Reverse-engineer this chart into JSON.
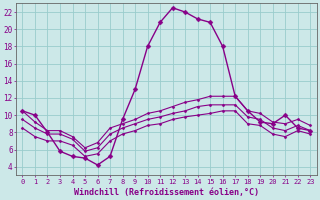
{
  "background_color": "#cce8e8",
  "grid_color": "#99cccc",
  "line_color": "#880088",
  "xlabel": "Windchill (Refroidissement éolien,°C)",
  "xlabel_fontsize": 6.0,
  "xlim": [
    -0.5,
    23.5
  ],
  "ylim": [
    3,
    23
  ],
  "xticks": [
    0,
    1,
    2,
    3,
    4,
    5,
    6,
    7,
    8,
    9,
    10,
    11,
    12,
    13,
    14,
    15,
    16,
    17,
    18,
    19,
    20,
    21,
    22,
    23
  ],
  "yticks": [
    4,
    6,
    8,
    10,
    12,
    14,
    16,
    18,
    20,
    22
  ],
  "series": [
    {
      "x": [
        0,
        1,
        2,
        3,
        4,
        5,
        6,
        7,
        8,
        9,
        10,
        11,
        12,
        13,
        14,
        15,
        16,
        17,
        18,
        19,
        20,
        21,
        22,
        23
      ],
      "y": [
        10.5,
        10.0,
        8.0,
        5.8,
        5.2,
        5.0,
        4.2,
        5.2,
        9.5,
        13.0,
        18.0,
        20.8,
        22.5,
        22.0,
        21.2,
        20.8,
        18.0,
        12.2,
        10.5,
        9.2,
        9.0,
        10.0,
        8.5,
        8.2
      ],
      "marker": "D",
      "markersize": 2.5,
      "linewidth": 1.0
    },
    {
      "x": [
        0,
        1,
        2,
        3,
        4,
        5,
        6,
        7,
        8,
        9,
        10,
        11,
        12,
        13,
        14,
        15,
        16,
        17,
        18,
        19,
        20,
        21,
        22,
        23
      ],
      "y": [
        10.5,
        9.2,
        8.2,
        8.2,
        7.5,
        6.2,
        6.8,
        8.5,
        9.0,
        9.5,
        10.2,
        10.5,
        11.0,
        11.5,
        11.8,
        12.2,
        12.2,
        12.2,
        10.5,
        10.2,
        9.2,
        9.0,
        9.5,
        8.8
      ],
      "marker": "D",
      "markersize": 1.5,
      "linewidth": 0.8
    },
    {
      "x": [
        0,
        1,
        2,
        3,
        4,
        5,
        6,
        7,
        8,
        9,
        10,
        11,
        12,
        13,
        14,
        15,
        16,
        17,
        18,
        19,
        20,
        21,
        22,
        23
      ],
      "y": [
        9.5,
        8.5,
        7.8,
        7.8,
        7.2,
        5.8,
        6.2,
        7.8,
        8.5,
        9.0,
        9.5,
        9.8,
        10.2,
        10.5,
        11.0,
        11.2,
        11.2,
        11.2,
        9.8,
        9.5,
        8.5,
        8.2,
        8.8,
        8.2
      ],
      "marker": "D",
      "markersize": 1.5,
      "linewidth": 0.8
    },
    {
      "x": [
        0,
        1,
        2,
        3,
        4,
        5,
        6,
        7,
        8,
        9,
        10,
        11,
        12,
        13,
        14,
        15,
        16,
        17,
        18,
        19,
        20,
        21,
        22,
        23
      ],
      "y": [
        8.5,
        7.5,
        7.0,
        7.0,
        6.5,
        5.2,
        5.5,
        7.0,
        7.8,
        8.2,
        8.8,
        9.0,
        9.5,
        9.8,
        10.0,
        10.2,
        10.5,
        10.5,
        9.0,
        8.8,
        7.8,
        7.5,
        8.2,
        7.8
      ],
      "marker": "D",
      "markersize": 1.5,
      "linewidth": 0.8
    }
  ]
}
